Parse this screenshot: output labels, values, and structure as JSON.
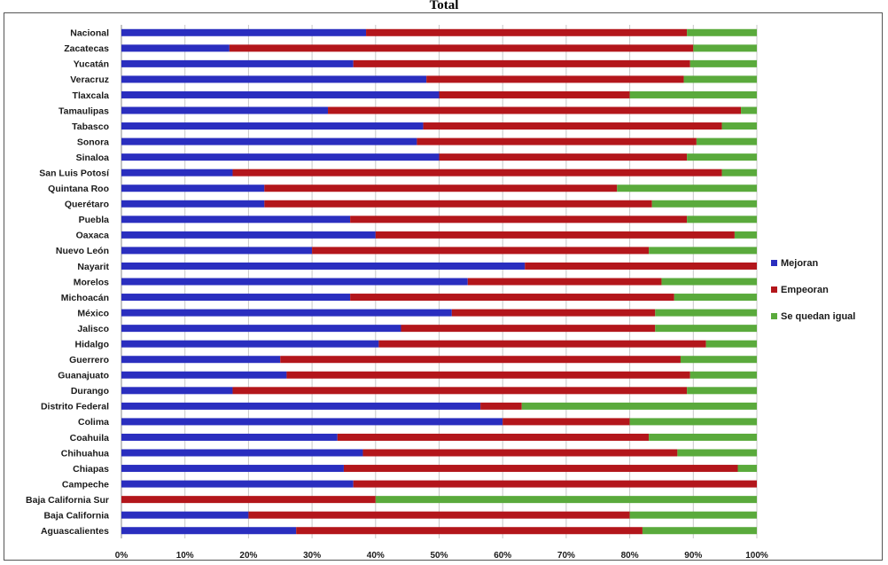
{
  "chart_data": {
    "type": "bar",
    "orientation": "horizontal",
    "stacked": "percent",
    "title": "Total",
    "xlabel": "",
    "ylabel": "",
    "xlim": [
      0,
      100
    ],
    "x_ticks": [
      "0%",
      "10%",
      "20%",
      "30%",
      "40%",
      "50%",
      "60%",
      "70%",
      "80%",
      "90%",
      "100%"
    ],
    "grid": true,
    "legend_position": "right",
    "categories": [
      "Nacional",
      "Zacatecas",
      "Yucatán",
      "Veracruz",
      "Tlaxcala",
      "Tamaulipas",
      "Tabasco",
      "Sonora",
      "Sinaloa",
      "San Luis Potosí",
      "Quintana Roo",
      "Querétaro",
      "Puebla",
      "Oaxaca",
      "Nuevo León",
      "Nayarit",
      "Morelos",
      "Michoacán",
      "México",
      "Jalisco",
      "Hidalgo",
      "Guerrero",
      "Guanajuato",
      "Durango",
      "Distrito Federal",
      "Colima",
      "Coahuila",
      "Chihuahua",
      "Chiapas",
      "Campeche",
      "Baja California Sur",
      "Baja California",
      "Aguascalientes"
    ],
    "series": [
      {
        "name": "Mejoran",
        "color": "#2a2ebf",
        "values": [
          38.5,
          17,
          36.5,
          48,
          50,
          32.5,
          47.5,
          46.5,
          50,
          17.5,
          22.5,
          22.5,
          36,
          40,
          30,
          63.5,
          54.5,
          36,
          52,
          44,
          40.5,
          25,
          26,
          17.5,
          56.5,
          60,
          34,
          38,
          35,
          36.5,
          0,
          20,
          27.5
        ]
      },
      {
        "name": "Empeoran",
        "color": "#b3161b",
        "values": [
          50.5,
          73,
          53,
          40.5,
          30,
          65,
          47,
          44,
          39,
          77,
          55.5,
          61,
          53,
          56.5,
          53,
          36.5,
          30.5,
          51,
          32,
          40,
          51.5,
          63,
          63.5,
          71.5,
          6.5,
          20,
          49,
          49.5,
          62,
          63.5,
          40,
          60,
          54.5
        ]
      },
      {
        "name": "Se quedan igual",
        "color": "#5aaa3c",
        "values": [
          11,
          10,
          10.5,
          11.5,
          20,
          2.5,
          5.5,
          9.5,
          11,
          5.5,
          22,
          16.5,
          11,
          3.5,
          17,
          0,
          15,
          13,
          16,
          16,
          8,
          12,
          10.5,
          11,
          37,
          20,
          17,
          12.5,
          3,
          0,
          60,
          20,
          18
        ]
      }
    ]
  }
}
